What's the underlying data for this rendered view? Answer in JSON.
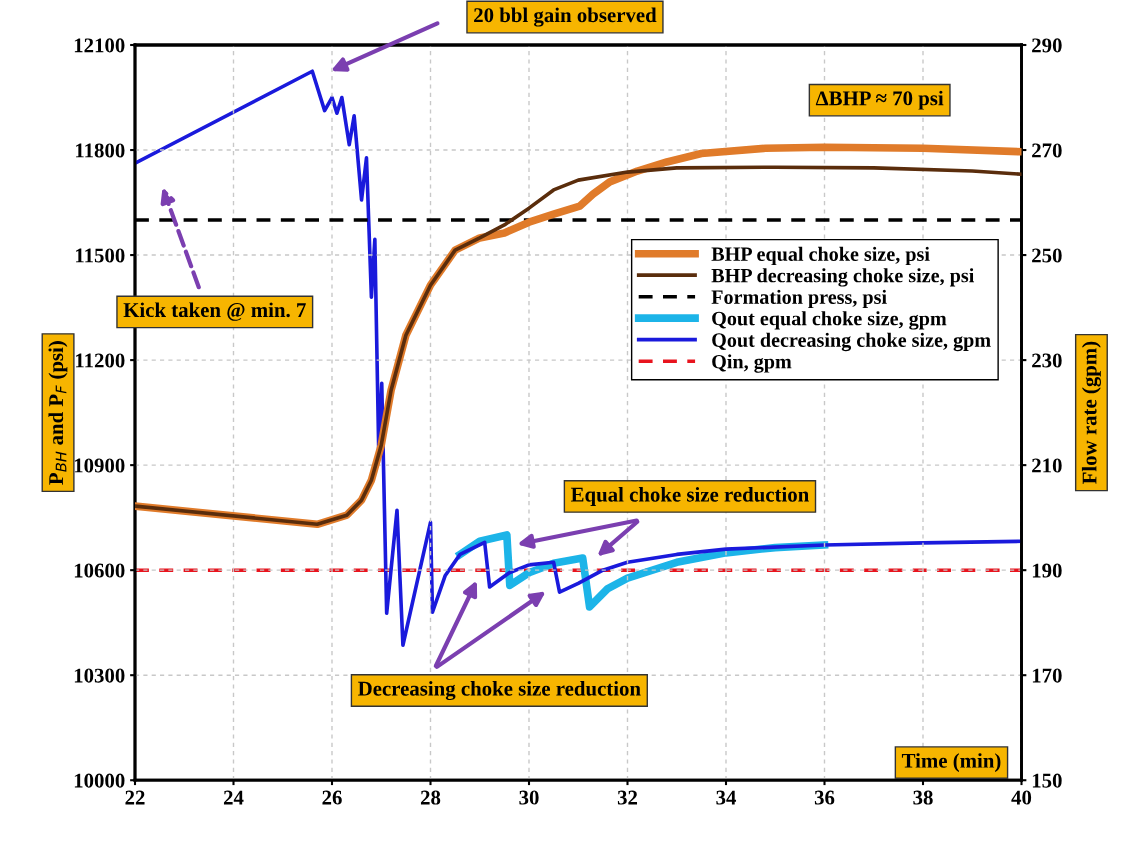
{
  "chart_data": {
    "type": "line",
    "xlabel": "Time (min)",
    "ylabel": "P$_{BH}$ and P$_{F}$ (psi)",
    "y2label": "Flow rate (gpm)",
    "xlim": [
      22,
      40
    ],
    "xticks": [
      22,
      24,
      26,
      28,
      30,
      32,
      34,
      36,
      38,
      40
    ],
    "ylim": [
      10000,
      12100
    ],
    "yticks": [
      10000,
      10300,
      10600,
      10900,
      11200,
      11500,
      11800,
      12100
    ],
    "y2lim": [
      150,
      290
    ],
    "y2ticks": [
      150,
      170,
      190,
      210,
      230,
      250,
      270,
      290
    ],
    "grid": true,
    "legend": "right",
    "line_style": "solid",
    "marker": "none",
    "series": [
      {
        "name": "BHP equal choke size, psi",
        "color": "#e07b2a",
        "x": [
          22,
          25.7,
          26.3,
          26.6,
          26.8,
          27.0,
          27.2,
          27.5,
          28.0,
          28.5,
          29.0,
          29.5,
          30.0,
          30.5,
          31.03,
          31.3,
          31.64,
          32.2,
          32.8,
          33.5,
          34.8,
          36,
          38,
          40
        ],
        "values": [
          10783,
          10731,
          10757,
          10800,
          10857,
          10957,
          11114,
          11271,
          11414,
          11514,
          11549,
          11563,
          11594,
          11617,
          11640,
          11674,
          11709,
          11740,
          11766,
          11790,
          11805,
          11808,
          11805,
          11795
        ]
      },
      {
        "name": "BHP decreasing choke size, psi",
        "color": "#5a2d0c",
        "x": [
          22,
          25.7,
          26.3,
          26.6,
          26.8,
          27.0,
          27.2,
          27.5,
          28.0,
          28.5,
          29.0,
          29.5,
          30.0,
          30.5,
          31.0,
          32,
          33,
          35,
          37,
          39,
          40
        ],
        "values": [
          10783,
          10731,
          10757,
          10800,
          10857,
          10957,
          11114,
          11271,
          11414,
          11514,
          11549,
          11586,
          11634,
          11686,
          11714,
          11737,
          11749,
          11751,
          11749,
          11740,
          11731
        ]
      },
      {
        "name": "Qout equal choke size, gpm",
        "color": "#1cb4e8",
        "axis": "y2",
        "x": [
          28.6,
          29.0,
          29.55,
          29.61,
          30.0,
          30.5,
          31.09,
          31.23,
          31.6,
          32,
          33,
          34,
          35,
          36
        ],
        "values": [
          193,
          195.5,
          196.7,
          187.1,
          189.5,
          191.3,
          192.3,
          183,
          186.5,
          188.5,
          191.5,
          193.3,
          194.3,
          194.8
        ]
      },
      {
        "name": "Qout decreasing choke size, gpm",
        "color": "#1a1adc",
        "axis": "y2",
        "x": [
          22,
          25.6,
          25.85,
          26.0,
          26.1,
          26.2,
          26.35,
          26.45,
          26.6,
          26.7,
          26.8,
          26.87,
          26.95,
          27.01,
          27.11,
          27.32,
          27.44,
          28.0,
          28.04,
          28.3,
          28.6,
          29.1,
          29.2,
          29.6,
          30.0,
          30.5,
          30.62,
          31.0,
          31.5,
          32,
          33,
          34,
          36,
          38,
          40
        ],
        "values": [
          267.5,
          285,
          277.5,
          280,
          277,
          280,
          271,
          276.5,
          260.5,
          268.5,
          242,
          253,
          212,
          225.6,
          181.8,
          201.4,
          175.7,
          199.1,
          182,
          189,
          193,
          195.3,
          186.8,
          189.5,
          191,
          191.5,
          185.8,
          187.5,
          190,
          191.5,
          193,
          194,
          194.8,
          195.2,
          195.5
        ]
      }
    ],
    "ref_lines": [
      {
        "axis": "y",
        "value": 11600,
        "label": "Formation press, psi",
        "color": "#000000",
        "line_style": "dashed"
      },
      {
        "axis": "y2",
        "value": 190,
        "label": "Qin, gpm",
        "color": "#e8141e",
        "line_style": "dashed"
      }
    ],
    "annotations": [
      "20 bbl gain observed",
      "ΔBHP ≈ 70 psi",
      "Kick taken @ min. 7",
      "Equal choke size reduction",
      "Decreasing choke size reduction"
    ]
  }
}
